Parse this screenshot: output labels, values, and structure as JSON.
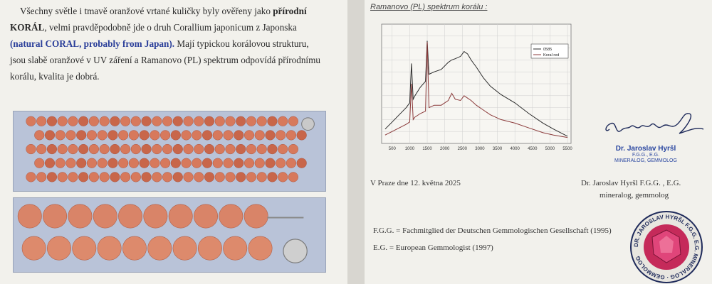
{
  "left_page": {
    "intro": {
      "p1": "Všechny světle i tmavě oranžové vrtané kuličky byly ověřeny jako ",
      "b1": "přírodní KORÁL",
      "p2": ", velmi pravděpodobně jde o druh Corallium japonicum z Japonska ",
      "b2": "(natural CORAL, probably from Japan).",
      "p3": " Mají typickou korálovou strukturu, jsou slabě oranžové v UV záření a Ramanovo (PL) spektrum odpovídá přírodnímu korálu, kvalita je dobrá."
    }
  },
  "right_page": {
    "chart_title": "Ramanovo (PL) spektrum korálu :",
    "signature": {
      "name": "Dr. Jaroslav Hyršl",
      "line1": "F.G.G., E.G.",
      "line2": "MINERALOG, GEMMOLOG"
    },
    "place_date": "V Praze dne   12. května 2025",
    "signer_line1": "Dr. Jaroslav Hyršl   F.G.G. , E.G.",
    "signer_line2": "mineralog, gemmolog",
    "abbr1": "F.G.G. =  Fachmitglied der Deutschen Gemmologischen Gesellschaft (1995)",
    "abbr2": "E.G. =  European Gemmologist (1997)",
    "seal_text": "DR. JAROSLAV HYRŠL F.G.G. E.G. MINERALOG · GEMMOLOG"
  },
  "chart_data": {
    "type": "line",
    "title": "Ramanovo (PL) spektrum korálu :",
    "x_ticks": [
      500,
      1000,
      1500,
      2000,
      2500,
      3000,
      3500,
      4000,
      4500,
      5000,
      5500
    ],
    "xlim": [
      200,
      5600
    ],
    "ylim": [
      0,
      1
    ],
    "grid": true,
    "legend_position": "top-right",
    "series": [
      {
        "name": "0585",
        "color": "#2b2b2b",
        "x": [
          300,
          500,
          700,
          900,
          1000,
          1050,
          1100,
          1150,
          1300,
          1450,
          1500,
          1550,
          1700,
          1900,
          2100,
          2200,
          2300,
          2450,
          2550,
          2650,
          2750,
          2900,
          3100,
          3300,
          3600,
          4000,
          4400,
          4800,
          5100,
          5500
        ],
        "y": [
          0.12,
          0.18,
          0.24,
          0.3,
          0.34,
          0.67,
          0.37,
          0.4,
          0.47,
          0.52,
          0.86,
          0.58,
          0.6,
          0.62,
          0.68,
          0.7,
          0.71,
          0.73,
          0.77,
          0.75,
          0.7,
          0.64,
          0.55,
          0.48,
          0.41,
          0.34,
          0.25,
          0.17,
          0.12,
          0.06
        ]
      },
      {
        "name": "Koral red",
        "color": "#8b3a3a",
        "x": [
          300,
          500,
          700,
          900,
          1000,
          1050,
          1100,
          1150,
          1300,
          1450,
          1500,
          1550,
          1700,
          1900,
          2100,
          2200,
          2300,
          2450,
          2550,
          2650,
          2750,
          2900,
          3100,
          3300,
          3600,
          4000,
          4400,
          4800,
          5100,
          5500
        ],
        "y": [
          0.07,
          0.1,
          0.13,
          0.16,
          0.18,
          0.5,
          0.2,
          0.22,
          0.25,
          0.27,
          0.85,
          0.3,
          0.32,
          0.32,
          0.36,
          0.42,
          0.37,
          0.36,
          0.4,
          0.38,
          0.36,
          0.32,
          0.28,
          0.24,
          0.2,
          0.17,
          0.13,
          0.09,
          0.07,
          0.05
        ]
      }
    ]
  }
}
